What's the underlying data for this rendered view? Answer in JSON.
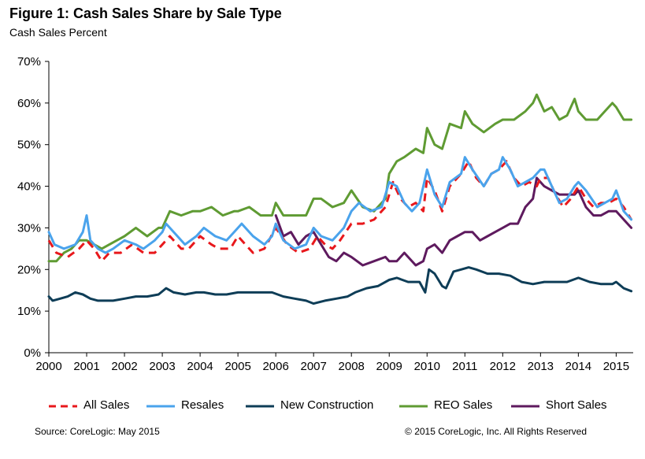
{
  "title": "Figure 1: Cash Sales Share by Sale Type",
  "subtitle": "Cash Sales Percent",
  "source": "Source: CoreLogic: May 2015",
  "copyright": "© 2015 CoreLogic, Inc. All Rights Reserved",
  "chart_data": {
    "type": "line",
    "title": "Figure 1: Cash Sales Share by Sale Type",
    "ylabel": "Cash Sales Percent",
    "xlabel": "",
    "ylim": [
      0,
      70
    ],
    "xlim": [
      2000,
      2015.45
    ],
    "y_ticks": [
      "0%",
      "10%",
      "20%",
      "30%",
      "40%",
      "50%",
      "60%",
      "70%"
    ],
    "x_ticks": [
      "2000",
      "2001",
      "2002",
      "2003",
      "2004",
      "2005",
      "2006",
      "2007",
      "2008",
      "2009",
      "2010",
      "2011",
      "2012",
      "2013",
      "2014",
      "2015"
    ],
    "grid": false,
    "legend_position": "bottom",
    "series": [
      {
        "name": "All Sales",
        "color": "#e8181c",
        "style": "dashed",
        "x": [
          2000,
          2000.2,
          2000.5,
          2000.8,
          2001.0,
          2001.2,
          2001.4,
          2001.6,
          2001.9,
          2002.2,
          2002.5,
          2002.8,
          2003.0,
          2003.2,
          2003.5,
          2003.7,
          2004.0,
          2004.3,
          2004.5,
          2004.8,
          2005.0,
          2005.2,
          2005.4,
          2005.7,
          2006.0,
          2006.3,
          2006.6,
          2006.9,
          2007.1,
          2007.3,
          2007.5,
          2007.7,
          2008.0,
          2008.3,
          2008.6,
          2008.9,
          2009.1,
          2009.3,
          2009.5,
          2009.7,
          2009.9,
          2010.0,
          2010.2,
          2010.4,
          2010.6,
          2010.9,
          2011.1,
          2011.3,
          2011.5,
          2011.7,
          2011.9,
          2012.1,
          2012.3,
          2012.5,
          2012.7,
          2012.9,
          2013.0,
          2013.2,
          2013.4,
          2013.6,
          2013.8,
          2014.0,
          2014.2,
          2014.4,
          2014.6,
          2014.8,
          2015.0,
          2015.2,
          2015.4
        ],
        "values": [
          27,
          24,
          23,
          25,
          27,
          25,
          22,
          24,
          24,
          26,
          24,
          24,
          26,
          28,
          25,
          25,
          28,
          26,
          25,
          25,
          28,
          26,
          24,
          25,
          30,
          26,
          24,
          25,
          28,
          26,
          25,
          27,
          31,
          31,
          32,
          35,
          41,
          37,
          35,
          36,
          34,
          42,
          39,
          34,
          40,
          43,
          46,
          42,
          40,
          43,
          44,
          46,
          42,
          40,
          41,
          40,
          42,
          42,
          38,
          35,
          37,
          40,
          37,
          35,
          36,
          36,
          37,
          35,
          32
        ]
      },
      {
        "name": "Resales",
        "color": "#4aa3ec",
        "style": "solid",
        "x": [
          2000,
          2000.15,
          2000.4,
          2000.7,
          2000.9,
          2001.0,
          2001.1,
          2001.3,
          2001.5,
          2001.7,
          2002.0,
          2002.3,
          2002.5,
          2002.8,
          2003.0,
          2003.1,
          2003.4,
          2003.6,
          2003.9,
          2004.1,
          2004.4,
          2004.7,
          2004.9,
          2005.1,
          2005.4,
          2005.7,
          2005.9,
          2006.0,
          2006.2,
          2006.5,
          2006.8,
          2007.0,
          2007.2,
          2007.5,
          2007.8,
          2008.0,
          2008.2,
          2008.5,
          2008.8,
          2009.0,
          2009.2,
          2009.4,
          2009.6,
          2009.8,
          2010.0,
          2010.2,
          2010.4,
          2010.6,
          2010.9,
          2011.0,
          2011.2,
          2011.5,
          2011.7,
          2011.9,
          2012.0,
          2012.2,
          2012.4,
          2012.6,
          2012.8,
          2013.0,
          2013.1,
          2013.3,
          2013.5,
          2013.7,
          2013.9,
          2014.0,
          2014.2,
          2014.5,
          2014.7,
          2014.9,
          2015.0,
          2015.2,
          2015.4
        ],
        "values": [
          29,
          26,
          25,
          26,
          29,
          33,
          27,
          25,
          24,
          25,
          27,
          26,
          25,
          27,
          29,
          31,
          28,
          26,
          28,
          30,
          28,
          27,
          29,
          31,
          28,
          26,
          28,
          31,
          27,
          25,
          26,
          30,
          28,
          27,
          30,
          34,
          36,
          34,
          35,
          41,
          40,
          36,
          34,
          36,
          44,
          38,
          35,
          41,
          43,
          47,
          44,
          40,
          43,
          44,
          47,
          44,
          40,
          41,
          42,
          44,
          44,
          40,
          36,
          37,
          40,
          41,
          39,
          35,
          36,
          37,
          39,
          34,
          32
        ]
      },
      {
        "name": "New Construction",
        "color": "#0e3d57",
        "style": "solid",
        "x": [
          2000,
          2000.1,
          2000.3,
          2000.5,
          2000.7,
          2000.9,
          2001.1,
          2001.3,
          2001.5,
          2001.7,
          2002.0,
          2002.3,
          2002.6,
          2002.9,
          2003.1,
          2003.3,
          2003.6,
          2003.9,
          2004.1,
          2004.4,
          2004.7,
          2005.0,
          2005.3,
          2005.6,
          2005.9,
          2006.2,
          2006.5,
          2006.8,
          2007.0,
          2007.3,
          2007.6,
          2007.9,
          2008.1,
          2008.4,
          2008.7,
          2009.0,
          2009.2,
          2009.5,
          2009.8,
          2009.95,
          2010.05,
          2010.2,
          2010.4,
          2010.5,
          2010.7,
          2010.9,
          2011.1,
          2011.3,
          2011.6,
          2011.9,
          2012.2,
          2012.5,
          2012.8,
          2013.1,
          2013.4,
          2013.7,
          2014.0,
          2014.3,
          2014.6,
          2014.9,
          2015.0,
          2015.2,
          2015.4
        ],
        "values": [
          13.5,
          12.5,
          13,
          13.5,
          14.5,
          14,
          13,
          12.5,
          12.5,
          12.5,
          13,
          13.5,
          13.5,
          14,
          15.5,
          14.5,
          14,
          14.5,
          14.5,
          14,
          14,
          14.5,
          14.5,
          14.5,
          14.5,
          13.5,
          13,
          12.5,
          11.8,
          12.5,
          13,
          13.5,
          14.5,
          15.5,
          16,
          17.5,
          18,
          17,
          17,
          14.5,
          20,
          19,
          16,
          15.5,
          19.5,
          20,
          20.5,
          20,
          19,
          19,
          18.5,
          17,
          16.5,
          17,
          17,
          17,
          18,
          17,
          16.5,
          16.5,
          17,
          15.5,
          14.8
        ]
      },
      {
        "name": "REO Sales",
        "color": "#5f9b33",
        "style": "solid",
        "x": [
          2000,
          2000.2,
          2000.4,
          2000.6,
          2000.8,
          2001.0,
          2001.2,
          2001.4,
          2001.6,
          2001.8,
          2002.0,
          2002.3,
          2002.6,
          2002.9,
          2003.0,
          2003.2,
          2003.5,
          2003.8,
          2004.0,
          2004.3,
          2004.6,
          2004.9,
          2005.0,
          2005.3,
          2005.6,
          2005.9,
          2006.0,
          2006.2,
          2006.5,
          2006.8,
          2007.0,
          2007.2,
          2007.5,
          2007.8,
          2008.0,
          2008.3,
          2008.6,
          2008.9,
          2009.0,
          2009.2,
          2009.4,
          2009.7,
          2009.9,
          2010.0,
          2010.2,
          2010.4,
          2010.6,
          2010.9,
          2011.0,
          2011.2,
          2011.5,
          2011.8,
          2012.0,
          2012.3,
          2012.6,
          2012.8,
          2012.9,
          2013.1,
          2013.3,
          2013.5,
          2013.7,
          2013.9,
          2014.0,
          2014.2,
          2014.5,
          2014.7,
          2014.9,
          2015.0,
          2015.2,
          2015.4
        ],
        "values": [
          22,
          22,
          24,
          25,
          27,
          27,
          26,
          25,
          26,
          27,
          28,
          30,
          28,
          30,
          30,
          34,
          33,
          34,
          34,
          35,
          33,
          34,
          34,
          35,
          33,
          33,
          36,
          33,
          33,
          33,
          37,
          37,
          35,
          36,
          39,
          35,
          34,
          37,
          43,
          46,
          47,
          49,
          48,
          54,
          50,
          49,
          55,
          54,
          58,
          55,
          53,
          55,
          56,
          56,
          58,
          60,
          62,
          58,
          59,
          56,
          57,
          61,
          58,
          56,
          56,
          58,
          60,
          59,
          56,
          56
        ]
      },
      {
        "name": "Short Sales",
        "color": "#5e1a5e",
        "style": "solid",
        "x": [
          2006.0,
          2006.2,
          2006.4,
          2006.6,
          2006.8,
          2007.0,
          2007.2,
          2007.4,
          2007.6,
          2007.8,
          2008.0,
          2008.3,
          2008.6,
          2008.9,
          2009.0,
          2009.2,
          2009.4,
          2009.7,
          2009.9,
          2010.0,
          2010.2,
          2010.4,
          2010.6,
          2010.8,
          2011.0,
          2011.2,
          2011.4,
          2011.6,
          2011.8,
          2012.0,
          2012.2,
          2012.4,
          2012.6,
          2012.8,
          2012.9,
          2013.1,
          2013.3,
          2013.5,
          2013.7,
          2013.9,
          2014.0,
          2014.2,
          2014.4,
          2014.6,
          2014.8,
          2015.0,
          2015.2,
          2015.4
        ],
        "values": [
          33,
          28,
          29,
          26,
          28,
          29,
          26,
          23,
          22,
          24,
          23,
          21,
          22,
          23,
          22,
          22,
          24,
          21,
          22,
          25,
          26,
          24,
          27,
          28,
          29,
          29,
          27,
          28,
          29,
          30,
          31,
          31,
          35,
          37,
          42,
          40,
          39,
          38,
          38,
          38,
          39,
          35,
          33,
          33,
          34,
          34,
          32,
          30
        ]
      }
    ]
  }
}
